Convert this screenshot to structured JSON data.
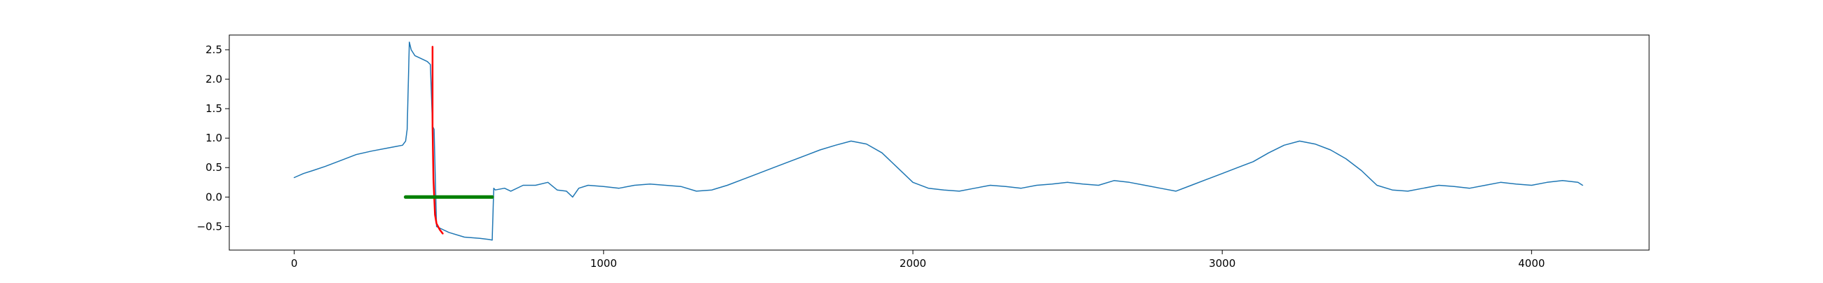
{
  "chart_data": {
    "type": "line",
    "title": "",
    "xlabel": "",
    "ylabel": "",
    "xlim": [
      -210,
      4380
    ],
    "ylim": [
      -0.9,
      2.75
    ],
    "x_ticks": [
      {
        "value": 0,
        "label": "0"
      },
      {
        "value": 1000,
        "label": "1000"
      },
      {
        "value": 2000,
        "label": "2000"
      },
      {
        "value": 3000,
        "label": "3000"
      },
      {
        "value": 4000,
        "label": "4000"
      }
    ],
    "y_ticks": [
      {
        "value": -0.5,
        "label": "−0.5"
      },
      {
        "value": 0.0,
        "label": "0.0"
      },
      {
        "value": 0.5,
        "label": "0.5"
      },
      {
        "value": 1.0,
        "label": "1.0"
      },
      {
        "value": 1.5,
        "label": "1.5"
      },
      {
        "value": 2.0,
        "label": "2.0"
      },
      {
        "value": 2.5,
        "label": "2.5"
      }
    ],
    "grid": false,
    "legend": "none",
    "series": [
      {
        "color": "#1f77b4",
        "x": [
          0,
          30,
          60,
          100,
          150,
          200,
          250,
          300,
          330,
          350,
          360,
          365,
          372,
          378,
          390,
          410,
          430,
          440,
          447,
          452,
          460,
          500,
          550,
          600,
          630,
          640,
          645,
          650,
          680,
          700,
          740,
          780,
          820,
          850,
          880,
          900,
          920,
          950,
          1000,
          1050,
          1100,
          1150,
          1200,
          1250,
          1300,
          1350,
          1400,
          1450,
          1500,
          1550,
          1600,
          1650,
          1700,
          1750,
          1800,
          1850,
          1900,
          1950,
          2000,
          2050,
          2100,
          2150,
          2200,
          2250,
          2300,
          2350,
          2400,
          2450,
          2500,
          2550,
          2600,
          2650,
          2700,
          2750,
          2800,
          2850,
          2900,
          2950,
          3000,
          3050,
          3100,
          3150,
          3200,
          3250,
          3300,
          3350,
          3400,
          3450,
          3500,
          3550,
          3600,
          3650,
          3700,
          3750,
          3800,
          3850,
          3900,
          3950,
          4000,
          4050,
          4100,
          4150,
          4165
        ],
        "y": [
          0.33,
          0.4,
          0.45,
          0.52,
          0.62,
          0.72,
          0.78,
          0.83,
          0.86,
          0.88,
          0.95,
          1.15,
          2.63,
          2.5,
          2.4,
          2.35,
          2.3,
          2.25,
          1.2,
          1.15,
          -0.5,
          -0.6,
          -0.68,
          -0.7,
          -0.72,
          -0.73,
          0.15,
          0.12,
          0.15,
          0.1,
          0.2,
          0.2,
          0.25,
          0.12,
          0.1,
          0.0,
          0.15,
          0.2,
          0.18,
          0.15,
          0.2,
          0.22,
          0.2,
          0.18,
          0.1,
          0.12,
          0.2,
          0.3,
          0.4,
          0.5,
          0.6,
          0.7,
          0.8,
          0.88,
          0.95,
          0.9,
          0.75,
          0.5,
          0.25,
          0.15,
          0.12,
          0.1,
          0.15,
          0.2,
          0.18,
          0.15,
          0.2,
          0.22,
          0.25,
          0.22,
          0.2,
          0.28,
          0.25,
          0.2,
          0.15,
          0.1,
          0.2,
          0.3,
          0.4,
          0.5,
          0.6,
          0.75,
          0.88,
          0.95,
          0.9,
          0.8,
          0.65,
          0.45,
          0.2,
          0.12,
          0.1,
          0.15,
          0.2,
          0.18,
          0.15,
          0.2,
          0.25,
          0.22,
          0.2,
          0.25,
          0.28,
          0.25,
          0.2
        ],
        "linewidth": 1.5
      },
      {
        "color": "#ff0000",
        "x": [
          447,
          447,
          450,
          455,
          460,
          470,
          480
        ],
        "y": [
          2.55,
          1.2,
          0.3,
          -0.3,
          -0.45,
          -0.55,
          -0.62
        ],
        "linewidth": 2.5
      },
      {
        "color": "#008000",
        "x": [
          360,
          640
        ],
        "y": [
          0.0,
          0.0
        ],
        "linewidth": 5
      }
    ]
  }
}
